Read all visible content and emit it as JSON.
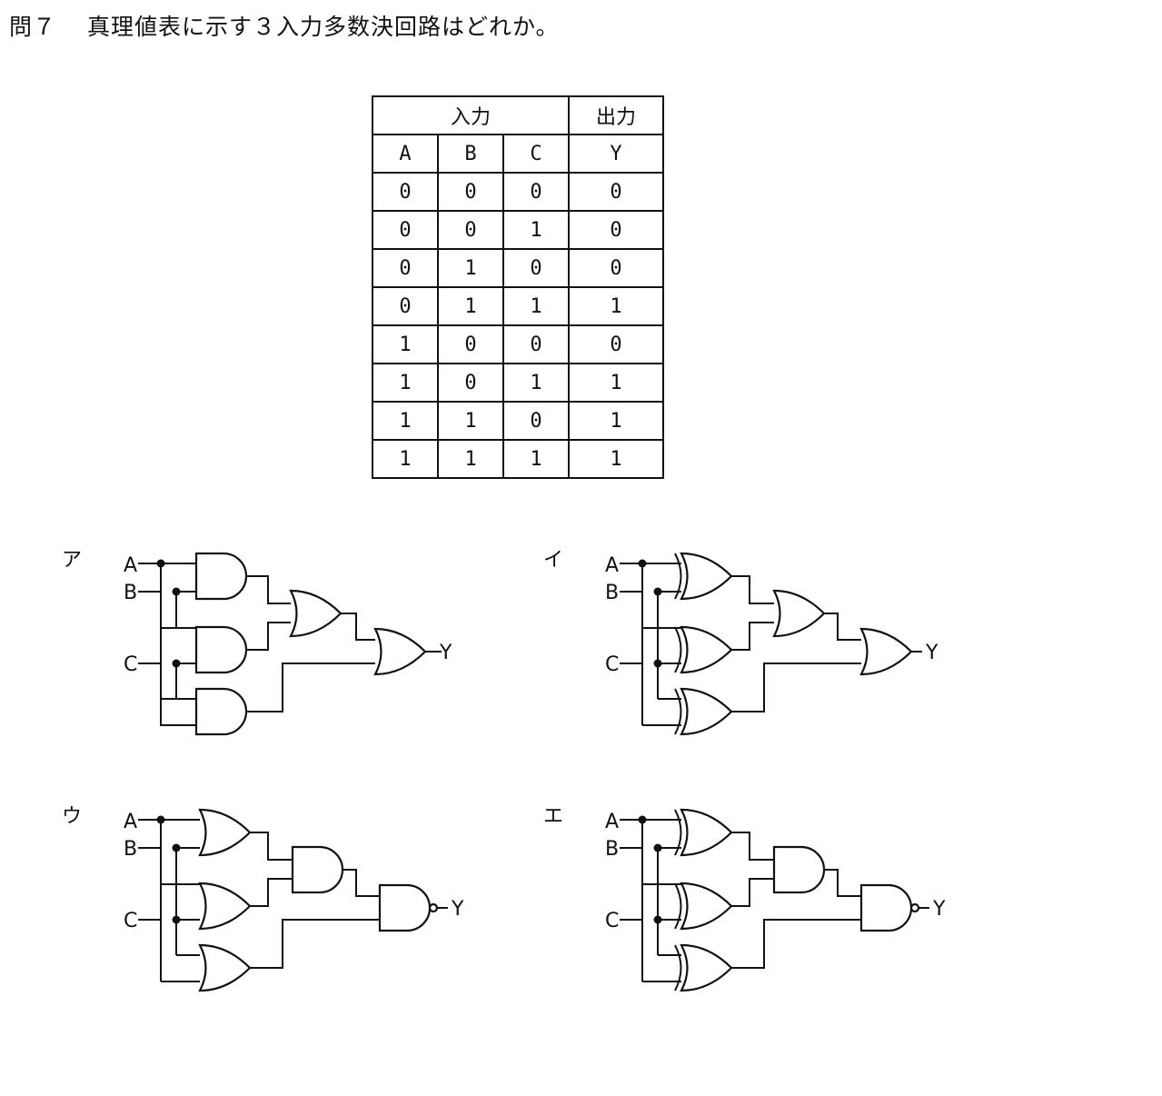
{
  "question": {
    "number": "問７",
    "text": "真理値表に示す３入力多数決回路はどれか。"
  },
  "truth_table": {
    "group_headers": [
      "入力",
      "出力"
    ],
    "columns": [
      "A",
      "B",
      "C",
      "Y"
    ],
    "rows": [
      [
        "0",
        "0",
        "0",
        "0"
      ],
      [
        "0",
        "0",
        "1",
        "0"
      ],
      [
        "0",
        "1",
        "0",
        "0"
      ],
      [
        "0",
        "1",
        "1",
        "1"
      ],
      [
        "1",
        "0",
        "0",
        "0"
      ],
      [
        "1",
        "0",
        "1",
        "1"
      ],
      [
        "1",
        "1",
        "0",
        "1"
      ],
      [
        "1",
        "1",
        "1",
        "1"
      ]
    ]
  },
  "options": [
    {
      "label": "ア",
      "inputs": [
        "A",
        "B",
        "C"
      ],
      "output": "Y",
      "first_gates": "AND",
      "second_gate": "OR",
      "final_gate": "OR"
    },
    {
      "label": "イ",
      "inputs": [
        "A",
        "B",
        "C"
      ],
      "output": "Y",
      "first_gates": "XOR",
      "second_gate": "OR",
      "final_gate": "OR"
    },
    {
      "label": "ウ",
      "inputs": [
        "A",
        "B",
        "C"
      ],
      "output": "Y",
      "first_gates": "OR",
      "second_gate": "AND",
      "final_gate": "NAND"
    },
    {
      "label": "エ",
      "inputs": [
        "A",
        "B",
        "C"
      ],
      "output": "Y",
      "first_gates": "XOR",
      "second_gate": "AND",
      "final_gate": "NAND"
    }
  ]
}
